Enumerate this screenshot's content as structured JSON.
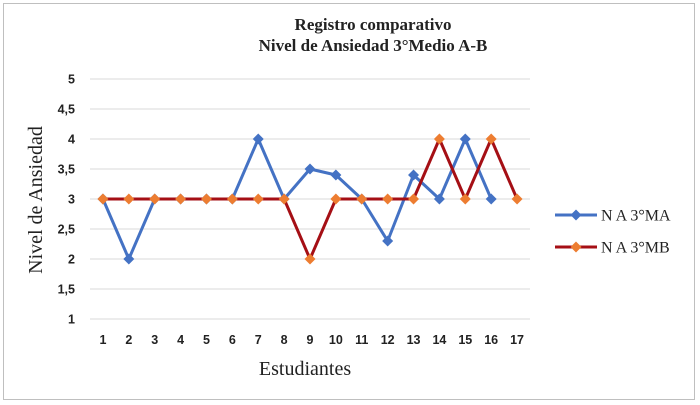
{
  "chart_data": {
    "type": "line",
    "title": "Registro comparativo",
    "subtitle": "Nivel de Ansiedad 3°Medio A-B",
    "xlabel": "Estudiantes",
    "ylabel": "Nivel de Ansiedad",
    "categories": [
      "1",
      "2",
      "3",
      "4",
      "5",
      "6",
      "7",
      "8",
      "9",
      "10",
      "11",
      "12",
      "13",
      "14",
      "15",
      "16",
      "17"
    ],
    "ylim": [
      1,
      5
    ],
    "yticks": [
      "1",
      "1,5",
      "2",
      "2,5",
      "3",
      "3,5",
      "4",
      "4,5",
      "5"
    ],
    "grid": true,
    "legend_position": "right",
    "series": [
      {
        "name": "N A 3°MA",
        "line_color": "#4472c4",
        "marker_color": "#4472c4",
        "values": [
          3,
          2,
          3,
          3,
          3,
          3,
          4,
          3,
          3.5,
          3.4,
          3,
          2.3,
          3.4,
          3,
          4,
          3,
          null
        ]
      },
      {
        "name": "N A 3°MB",
        "line_color": "#a50f15",
        "marker_color": "#ed7d31",
        "values": [
          3,
          3,
          3,
          3,
          3,
          3,
          3,
          3,
          2,
          3,
          3,
          3,
          3,
          4,
          3,
          4,
          3
        ]
      }
    ]
  }
}
